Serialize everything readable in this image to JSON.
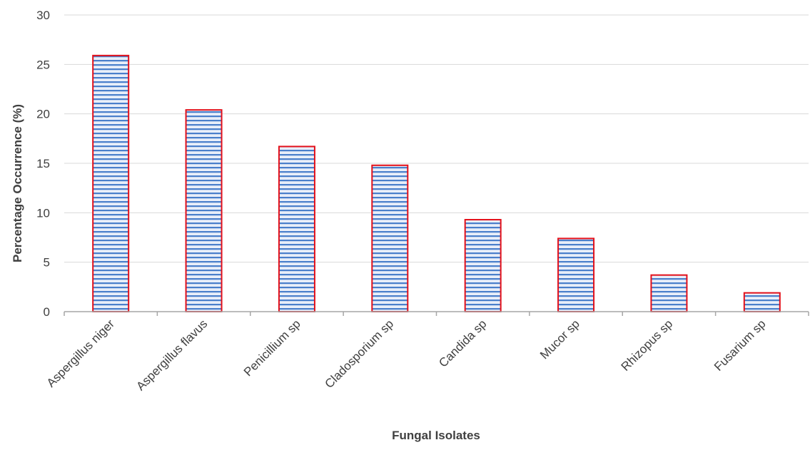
{
  "chart_data": {
    "type": "bar",
    "title": "",
    "xlabel": "Fungal Isolates",
    "ylabel": "Percentage Occurrence  (%)",
    "ylim": [
      0,
      30
    ],
    "yticks": [
      0,
      5,
      10,
      15,
      20,
      25,
      30
    ],
    "grid": true,
    "legend": "none",
    "categories": [
      "Aspergillus niger",
      "Aspergillus flavus",
      "Penicillium sp",
      "Cladosporium sp",
      "Candida sp",
      "Mucor sp",
      "Rhizopus sp",
      "Fusarium sp"
    ],
    "values": [
      25.9,
      20.4,
      16.7,
      14.8,
      9.3,
      7.4,
      3.7,
      1.9
    ],
    "colors": {
      "bar_outline": "#e3101a",
      "bar_stripe": "#4a7fcb",
      "bar_light": "#e8eef9",
      "grid": "#d9d9d9",
      "axis": "#a6a6a6"
    }
  }
}
